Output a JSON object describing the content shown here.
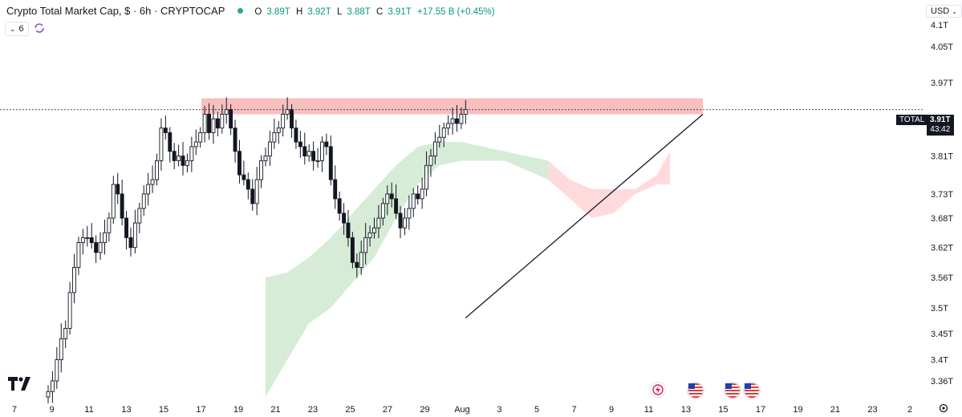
{
  "header": {
    "title": "Crypto Total Market Cap, $ · 6h · CRYPTOCAP",
    "ohlc": [
      {
        "label": "O",
        "value": "3.89T"
      },
      {
        "label": "H",
        "value": "3.92T"
      },
      {
        "label": "L",
        "value": "3.88T"
      },
      {
        "label": "C",
        "value": "3.91T"
      },
      {
        "label": "",
        "value": "+17.55 B (+0.45%)"
      }
    ],
    "indicator_count": "6",
    "currency": "USD"
  },
  "price_label": {
    "symbol": "TOTAL",
    "value": "3.91T",
    "countdown": "43:42"
  },
  "colors": {
    "up": "#26a69a",
    "down": "#ef5350",
    "candle": "#131722",
    "cloud_green": "#c8e6c9",
    "cloud_red": "#ffcdd2",
    "resistance": "#f28b8b"
  },
  "icons": [
    "tradingview-logo-icon",
    "sync-icon",
    "flash-event-icon",
    "us-flag-event-icon"
  ],
  "chart_data": {
    "type": "candlestick",
    "title": "Crypto Total Market Cap",
    "y_scale": "log",
    "y_ticks": [
      "4.1T",
      "4.05T",
      "3.97T",
      "3.81T",
      "3.73T",
      "3.68T",
      "3.62T",
      "3.56T",
      "3.5T",
      "3.45T",
      "3.4T",
      "3.36T"
    ],
    "x_ticks": [
      "7",
      "9",
      "11",
      "13",
      "15",
      "17",
      "19",
      "21",
      "23",
      "25",
      "27",
      "29",
      "Aug",
      "3",
      "5",
      "7",
      "9",
      "11",
      "13",
      "15",
      "17",
      "19",
      "21",
      "23",
      "2"
    ],
    "current_price": 3.91,
    "resistance_zone": [
      3.9,
      3.935
    ],
    "support_trendline": {
      "from": [
        "Aug 2",
        3.48
      ],
      "to": [
        "Aug 12",
        3.9
      ]
    },
    "closes": [
      3.34,
      3.36,
      3.4,
      3.44,
      3.46,
      3.53,
      3.58,
      3.63,
      3.64,
      3.64,
      3.63,
      3.61,
      3.63,
      3.65,
      3.68,
      3.75,
      3.73,
      3.68,
      3.64,
      3.62,
      3.67,
      3.7,
      3.73,
      3.75,
      3.76,
      3.8,
      3.87,
      3.86,
      3.82,
      3.8,
      3.81,
      3.79,
      3.8,
      3.83,
      3.84,
      3.86,
      3.9,
      3.86,
      3.89,
      3.87,
      3.9,
      3.91,
      3.87,
      3.82,
      3.77,
      3.76,
      3.74,
      3.71,
      3.76,
      3.8,
      3.81,
      3.84,
      3.86,
      3.87,
      3.9,
      3.91,
      3.87,
      3.84,
      3.83,
      3.81,
      3.82,
      3.8,
      3.8,
      3.84,
      3.83,
      3.76,
      3.72,
      3.69,
      3.67,
      3.64,
      3.59,
      3.58,
      3.61,
      3.64,
      3.65,
      3.66,
      3.68,
      3.71,
      3.73,
      3.72,
      3.69,
      3.66,
      3.68,
      3.7,
      3.73,
      3.72,
      3.74,
      3.79,
      3.81,
      3.84,
      3.85,
      3.87,
      3.88,
      3.89,
      3.88,
      3.9,
      3.91
    ],
    "cloud": [
      {
        "i": 50,
        "a": 3.56,
        "b": 3.33
      },
      {
        "i": 55,
        "a": 3.57,
        "b": 3.4
      },
      {
        "i": 60,
        "a": 3.6,
        "b": 3.47
      },
      {
        "i": 65,
        "a": 3.64,
        "b": 3.5
      },
      {
        "i": 70,
        "a": 3.69,
        "b": 3.55
      },
      {
        "i": 75,
        "a": 3.74,
        "b": 3.6
      },
      {
        "i": 80,
        "a": 3.79,
        "b": 3.68
      },
      {
        "i": 85,
        "a": 3.83,
        "b": 3.75
      },
      {
        "i": 90,
        "a": 3.84,
        "b": 3.79
      },
      {
        "i": 95,
        "a": 3.84,
        "b": 3.8
      },
      {
        "i": 100,
        "a": 3.83,
        "b": 3.8
      },
      {
        "i": 105,
        "a": 3.82,
        "b": 3.8
      },
      {
        "i": 110,
        "a": 3.81,
        "b": 3.78
      },
      {
        "i": 115,
        "a": 3.8,
        "b": 3.76
      },
      {
        "i": 120,
        "a": 3.76,
        "b": 3.72
      },
      {
        "i": 125,
        "a": 3.74,
        "b": 3.68
      },
      {
        "i": 130,
        "a": 3.74,
        "b": 3.69
      },
      {
        "i": 135,
        "a": 3.74,
        "b": 3.73
      },
      {
        "i": 140,
        "a": 3.77,
        "b": 3.75
      },
      {
        "i": 143,
        "a": 3.82,
        "b": 3.75
      }
    ]
  }
}
